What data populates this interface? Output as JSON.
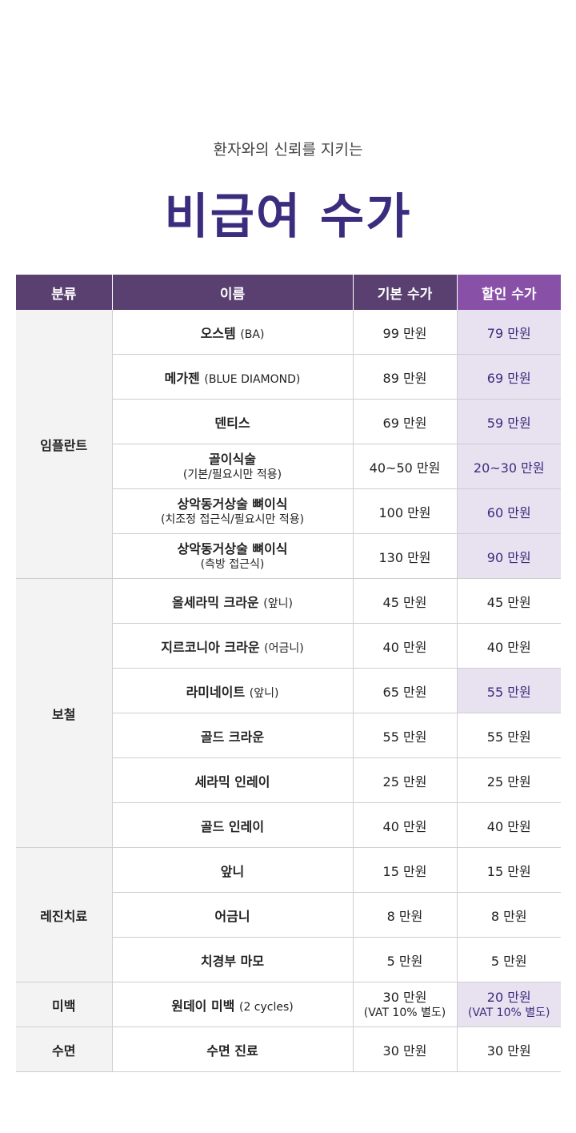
{
  "header": {
    "subtitle": "환자와의 신뢰를 지키는",
    "title": "비급여 수가"
  },
  "table": {
    "headers": {
      "category": "분류",
      "name": "이름",
      "base_price": "기본 수가",
      "discount_price": "할인 수가"
    },
    "categories": {
      "implant": "임플란트",
      "prosthesis": "보철",
      "resin": "레진치료",
      "whitening": "미백",
      "sedation": "수면"
    },
    "rows": [
      {
        "name": "오스템",
        "name_sub": "(BA)",
        "base": "99 만원",
        "discount": "79 만원"
      },
      {
        "name": "메가젠",
        "name_sub": "(BLUE DIAMOND)",
        "base": "89 만원",
        "discount": "69 만원"
      },
      {
        "name": "덴티스",
        "name_sub": "",
        "base": "69 만원",
        "discount": "59 만원"
      },
      {
        "name": "골이식술",
        "name_sub": "(기본/필요시만 적용)",
        "base": "40~50 만원",
        "discount": "20~30 만원"
      },
      {
        "name": "상악동거상술 뼈이식",
        "name_sub": "(치조정 접근식/필요시만 적용)",
        "base": "100 만원",
        "discount": "60 만원"
      },
      {
        "name": "상악동거상술 뼈이식",
        "name_sub": "(측방 접근식)",
        "base": "130 만원",
        "discount": "90 만원"
      },
      {
        "name": "올세라믹 크라운",
        "name_sub": "(앞니)",
        "base": "45 만원",
        "discount": "45 만원"
      },
      {
        "name": "지르코니아 크라운",
        "name_sub": "(어금니)",
        "base": "40 만원",
        "discount": "40 만원"
      },
      {
        "name": "라미네이트",
        "name_sub": "(앞니)",
        "base": "65 만원",
        "discount": "55 만원"
      },
      {
        "name": "골드 크라운",
        "name_sub": "",
        "base": "55 만원",
        "discount": "55 만원"
      },
      {
        "name": "세라믹 인레이",
        "name_sub": "",
        "base": "25 만원",
        "discount": "25 만원"
      },
      {
        "name": "골드 인레이",
        "name_sub": "",
        "base": "40 만원",
        "discount": "40 만원"
      },
      {
        "name": "앞니",
        "name_sub": "",
        "base": "15 만원",
        "discount": "15 만원"
      },
      {
        "name": "어금니",
        "name_sub": "",
        "base": "8 만원",
        "discount": "8 만원"
      },
      {
        "name": "치경부 마모",
        "name_sub": "",
        "base": "5 만원",
        "discount": "5 만원"
      },
      {
        "name": "원데이 미백",
        "name_sub": "(2 cycles)",
        "base": "30 만원",
        "base_sub": "(VAT 10% 별도)",
        "discount": "20 만원",
        "discount_sub": "(VAT 10% 별도)"
      },
      {
        "name": "수면 진료",
        "name_sub": "",
        "base": "30 만원",
        "discount": "30 만원"
      }
    ]
  },
  "colors": {
    "title": "#3b2c7e",
    "header_bg": "#5a4070",
    "discount_header_bg": "#8950a8",
    "highlight_bg": "#e7e1f0",
    "category_bg": "#f3f3f3"
  }
}
